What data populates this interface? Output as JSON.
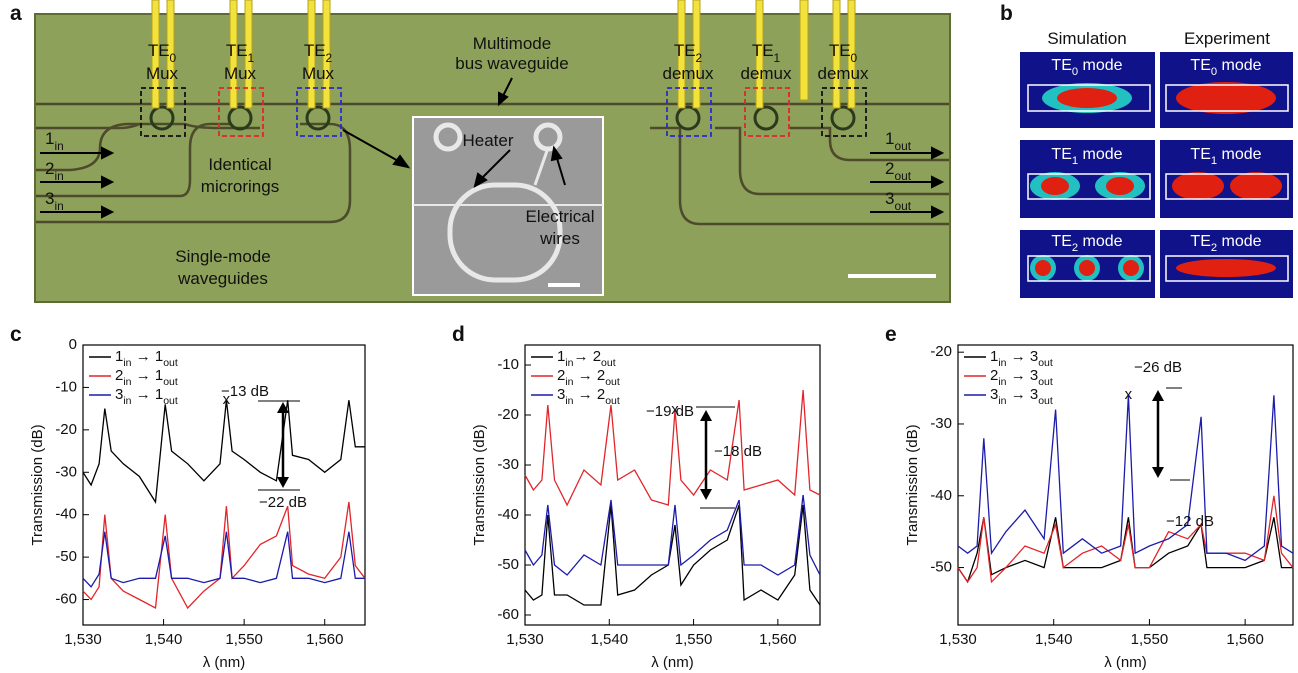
{
  "panel_a": {
    "letter": "a",
    "mux_labels": [
      {
        "mode": "TE0",
        "role": "Mux"
      },
      {
        "mode": "TE1",
        "role": "Mux"
      },
      {
        "mode": "TE2",
        "role": "Mux"
      },
      {
        "mode": "TE2",
        "role": "demux"
      },
      {
        "mode": "TE1",
        "role": "demux"
      },
      {
        "mode": "TE0",
        "role": "demux"
      }
    ],
    "bus_label": [
      "Multimode",
      "bus waveguide"
    ],
    "inputs": [
      "1in",
      "2in",
      "3in"
    ],
    "outputs": [
      "1out",
      "2out",
      "3out"
    ],
    "ring_label": [
      "Identical",
      "microrings"
    ],
    "single_label": [
      "Single-mode",
      "waveguides"
    ],
    "heater": "Heater",
    "wires": [
      "Electrical",
      "wires"
    ]
  },
  "panel_b": {
    "letter": "b",
    "columns": [
      "Simulation",
      "Experiment"
    ],
    "modes": [
      "TE0 mode",
      "TE1 mode",
      "TE2 mode"
    ]
  },
  "chart_data": [
    {
      "type": "line",
      "panel": "c",
      "x_label": "λ (nm)",
      "y_label": "Transmission (dB)",
      "legend": "upper left",
      "x": [
        1530,
        1531,
        1532,
        1532.7,
        1533.5,
        1535,
        1537,
        1539,
        1540.2,
        1541,
        1543,
        1545,
        1547,
        1547.8,
        1548.5,
        1550,
        1552,
        1554,
        1555.4,
        1556,
        1558,
        1560,
        1562,
        1563,
        1563.8,
        1565
      ],
      "series": [
        {
          "name": "1in → 1out",
          "color": "#000000",
          "values": [
            -30,
            -33,
            -28,
            -15,
            -25,
            -28,
            -31,
            -37,
            -14,
            -25,
            -28,
            -32,
            -28,
            -13,
            -25,
            -27,
            -30,
            -32,
            -13,
            -26,
            -27,
            -30,
            -27,
            -13,
            -24,
            -24
          ]
        },
        {
          "name": "2in → 1out",
          "color": "#e0262b",
          "values": [
            -58,
            -60,
            -57,
            -40,
            -55,
            -58,
            -60,
            -62,
            -40,
            -55,
            -62,
            -58,
            -55,
            -38,
            -55,
            -52,
            -47,
            -45,
            -38,
            -52,
            -54,
            -55,
            -50,
            -37,
            -52,
            -55
          ]
        },
        {
          "name": "3in → 1out",
          "color": "#1c1caa",
          "values": [
            -55,
            -57,
            -54,
            -44,
            -55,
            -56,
            -55,
            -55,
            -45,
            -55,
            -55,
            -56,
            -55,
            -44,
            -55,
            -55,
            -56,
            -55,
            -44,
            -55,
            -55,
            -56,
            -55,
            -44,
            -55,
            -55
          ]
        }
      ],
      "xlim": [
        1530,
        1565
      ],
      "xticks": [
        {
          "value": 1530,
          "label": "1,530"
        },
        {
          "value": 1540,
          "label": "1,540"
        },
        {
          "value": 1550,
          "label": "1,550"
        },
        {
          "value": 1560,
          "label": "1,560"
        }
      ],
      "ylim": [
        -66,
        0
      ],
      "yticks": [
        -60,
        -50,
        -40,
        -30,
        -20,
        -10,
        0
      ],
      "annotations": [
        "−13 dB",
        "−22 dB"
      ]
    },
    {
      "type": "line",
      "panel": "d",
      "x_label": "λ (nm)",
      "y_label": "Transmission (dB)",
      "legend": "upper left",
      "x": [
        1530,
        1531,
        1532,
        1532.7,
        1533.5,
        1535,
        1537,
        1539,
        1540.2,
        1541,
        1543,
        1545,
        1547,
        1547.8,
        1548.5,
        1550,
        1552,
        1554,
        1555.4,
        1556,
        1558,
        1560,
        1562,
        1563,
        1563.8,
        1565
      ],
      "series": [
        {
          "name": "1in→ 2out",
          "color": "#000000",
          "values": [
            -55,
            -57,
            -56,
            -40,
            -56,
            -56,
            -58,
            -58,
            -38,
            -56,
            -55,
            -52,
            -50,
            -42,
            -54,
            -50,
            -47,
            -45,
            -38,
            -57,
            -55,
            -57,
            -52,
            -38,
            -55,
            -58
          ]
        },
        {
          "name": "2in → 2out",
          "color": "#e0262b",
          "values": [
            -32,
            -35,
            -33,
            -18,
            -33,
            -38,
            -31,
            -34,
            -18,
            -33,
            -31,
            -37,
            -38,
            -19,
            -33,
            -36,
            -31,
            -33,
            -17,
            -35,
            -34,
            -33,
            -36,
            -15,
            -35,
            -36
          ]
        },
        {
          "name": "3in → 2out",
          "color": "#1c1caa",
          "values": [
            -47,
            -50,
            -48,
            -38,
            -50,
            -52,
            -48,
            -50,
            -37,
            -50,
            -50,
            -50,
            -50,
            -38,
            -50,
            -48,
            -45,
            -43,
            -37,
            -50,
            -50,
            -52,
            -50,
            -36,
            -48,
            -52
          ]
        }
      ],
      "xlim": [
        1530,
        1565
      ],
      "xticks": [
        {
          "value": 1530,
          "label": "1,530"
        },
        {
          "value": 1540,
          "label": "1,540"
        },
        {
          "value": 1550,
          "label": "1,550"
        },
        {
          "value": 1560,
          "label": "1,560"
        }
      ],
      "ylim": [
        -62,
        -6
      ],
      "yticks": [
        -60,
        -50,
        -40,
        -30,
        -20,
        -10
      ],
      "annotations": [
        "−19 dB",
        "−18 dB"
      ]
    },
    {
      "type": "line",
      "panel": "e",
      "x_label": "λ (nm)",
      "y_label": "Transmission (dB)",
      "legend": "upper left",
      "x": [
        1530,
        1531,
        1532,
        1532.7,
        1533.5,
        1535,
        1537,
        1539,
        1540.2,
        1541,
        1543,
        1545,
        1547,
        1547.8,
        1548.5,
        1550,
        1552,
        1554,
        1555.4,
        1556,
        1558,
        1560,
        1562,
        1563,
        1563.8,
        1565
      ],
      "series": [
        {
          "name": "1in → 3out",
          "color": "#000000",
          "values": [
            -50,
            -52,
            -48,
            -43,
            -51,
            -50,
            -49,
            -50,
            -43,
            -50,
            -50,
            -50,
            -49,
            -43,
            -50,
            -50,
            -48,
            -47,
            -44,
            -50,
            -50,
            -50,
            -49,
            -43,
            -50,
            -50
          ]
        },
        {
          "name": "2in → 3out",
          "color": "#e0262b",
          "values": [
            -50,
            -52,
            -50,
            -43,
            -52,
            -50,
            -47,
            -48,
            -44,
            -50,
            -48,
            -47,
            -49,
            -44,
            -50,
            -50,
            -45,
            -46,
            -44,
            -48,
            -48,
            -48,
            -49,
            -40,
            -48,
            -50
          ]
        },
        {
          "name": "3in → 3out",
          "color": "#1c1caa",
          "values": [
            -47,
            -48,
            -47,
            -32,
            -48,
            -45,
            -42,
            -46,
            -28,
            -48,
            -46,
            -48,
            -47,
            -26,
            -48,
            -47,
            -46,
            -44,
            -29,
            -48,
            -48,
            -49,
            -47,
            -26,
            -47,
            -48
          ]
        }
      ],
      "xlim": [
        1530,
        1565
      ],
      "xticks": [
        {
          "value": 1530,
          "label": "1,530"
        },
        {
          "value": 1540,
          "label": "1,540"
        },
        {
          "value": 1550,
          "label": "1,550"
        },
        {
          "value": 1560,
          "label": "1,560"
        }
      ],
      "ylim": [
        -58,
        -19
      ],
      "yticks": [
        -50,
        -40,
        -30,
        -20
      ],
      "annotations": [
        "−26 dB",
        "−12 dB"
      ]
    }
  ]
}
